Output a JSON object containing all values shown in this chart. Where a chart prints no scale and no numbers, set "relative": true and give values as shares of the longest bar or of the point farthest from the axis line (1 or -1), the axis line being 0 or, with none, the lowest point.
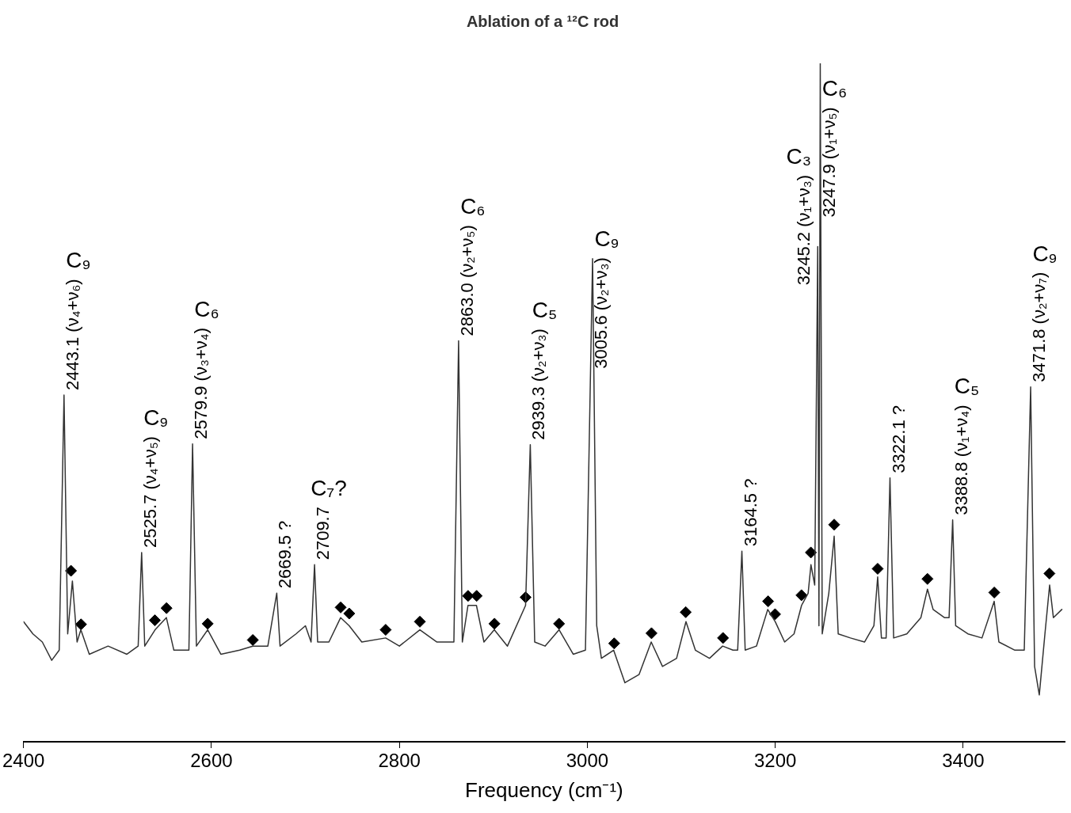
{
  "chart_data": {
    "type": "line",
    "relative": true,
    "title": "Ablation of a ¹²C rod",
    "xlabel": "Frequency (cm⁻¹)",
    "xlim": [
      2400,
      3508
    ],
    "xticks": [
      2400,
      2600,
      2800,
      3000,
      3200,
      3400
    ],
    "series": [
      {
        "type": "line",
        "color": "#333333",
        "x": [
          2400,
          2410,
          2420,
          2430,
          2438,
          2443.1,
          2447,
          2452,
          2457,
          2461,
          2470,
          2490,
          2510,
          2522,
          2525.7,
          2529,
          2540,
          2552,
          2560,
          2576,
          2579.9,
          2584,
          2596,
          2610,
          2630,
          2644,
          2660,
          2669.5,
          2673,
          2690,
          2700,
          2706,
          2709.7,
          2713,
          2725,
          2737.5,
          2746.6,
          2760,
          2785.4,
          2800,
          2821.8,
          2840,
          2858,
          2863,
          2867,
          2873,
          2882,
          2890,
          2901,
          2915,
          2934.3,
          2939.3,
          2944,
          2955,
          2970,
          2985,
          2998,
          3005.6,
          3010,
          3015,
          3028,
          3040,
          3055,
          3068,
          3080,
          3095,
          3105,
          3115,
          3130,
          3144,
          3155,
          3160,
          3164.5,
          3168,
          3180,
          3192,
          3200,
          3210,
          3220,
          3228,
          3235,
          3238,
          3242,
          3245.2,
          3246.5,
          3247.9,
          3250,
          3257,
          3262.7,
          3267,
          3280,
          3295,
          3305,
          3309,
          3313,
          3318,
          3322.1,
          3326,
          3340,
          3355,
          3362,
          3368,
          3380,
          3385,
          3388.8,
          3392,
          3405,
          3420,
          3433,
          3438,
          3455,
          3465,
          3471.8,
          3476,
          3481,
          3487,
          3492,
          3496,
          3505
        ],
        "values": [
          0.177,
          0.159,
          0.147,
          0.12,
          0.135,
          0.511,
          0.159,
          0.237,
          0.147,
          0.165,
          0.129,
          0.141,
          0.129,
          0.141,
          0.279,
          0.141,
          0.165,
          0.183,
          0.135,
          0.135,
          0.439,
          0.141,
          0.165,
          0.129,
          0.135,
          0.141,
          0.141,
          0.219,
          0.141,
          0.159,
          0.171,
          0.147,
          0.261,
          0.147,
          0.147,
          0.183,
          0.171,
          0.147,
          0.153,
          0.141,
          0.165,
          0.147,
          0.147,
          0.591,
          0.147,
          0.201,
          0.201,
          0.147,
          0.165,
          0.141,
          0.201,
          0.438,
          0.147,
          0.141,
          0.165,
          0.129,
          0.135,
          0.712,
          0.171,
          0.123,
          0.135,
          0.087,
          0.099,
          0.147,
          0.111,
          0.123,
          0.177,
          0.135,
          0.123,
          0.141,
          0.135,
          0.135,
          0.281,
          0.135,
          0.141,
          0.195,
          0.177,
          0.147,
          0.159,
          0.201,
          0.219,
          0.261,
          0.231,
          0.73,
          0.171,
          1,
          0.159,
          0.219,
          0.303,
          0.159,
          0.153,
          0.147,
          0.171,
          0.243,
          0.153,
          0.153,
          0.389,
          0.153,
          0.159,
          0.183,
          0.225,
          0.195,
          0.183,
          0.183,
          0.327,
          0.171,
          0.159,
          0.153,
          0.207,
          0.147,
          0.135,
          0.135,
          0.523,
          0.111,
          0.069,
          0.159,
          0.231,
          0.183,
          0.195
        ]
      },
      {
        "type": "scatter",
        "marker": "diamond",
        "color": "#000000",
        "x": [
          2450.5,
          2461.2,
          2539.8,
          2552.2,
          2596,
          2644,
          2737.5,
          2746.6,
          2785.4,
          2821.8,
          2873.1,
          2882.2,
          2901.2,
          2934.3,
          2969.9,
          3028.6,
          3068.3,
          3104.7,
          3144.4,
          3192.4,
          3199.8,
          3227.9,
          3237.9,
          3262.7,
          3309,
          3362,
          3433.1,
          3491.8
        ],
        "values": [
          0.252,
          0.173,
          0.179,
          0.197,
          0.174,
          0.15,
          0.198,
          0.189,
          0.165,
          0.177,
          0.215,
          0.215,
          0.174,
          0.213,
          0.174,
          0.145,
          0.16,
          0.191,
          0.153,
          0.207,
          0.188,
          0.216,
          0.279,
          0.32,
          0.255,
          0.24,
          0.22,
          0.248
        ]
      }
    ],
    "annotations": [
      {
        "text": "2443.1 (ν₄+ν₆)",
        "x": 2443.1,
        "y": 0.511
      },
      "C₉",
      {
        "text": "2525.7 (ν₄+ν₅)",
        "x": 2525.7,
        "y": 0.279
      },
      "C₉",
      {
        "text": "2579.9 (ν₃+ν₄)",
        "x": 2579.9,
        "y": 0.439
      },
      "C₆",
      {
        "text": "2669.5 ?",
        "x": 2669.5,
        "y": 0.219
      },
      {
        "text": "2709.7",
        "x": 2709.7,
        "y": 0.261
      },
      "C₇?",
      {
        "text": "2863.0 (ν₂+ν₅)",
        "x": 2863,
        "y": 0.591
      },
      "C₆",
      {
        "text": "2939.3 (ν₂+ν₃)",
        "x": 2939.3,
        "y": 0.438
      },
      "C₅",
      {
        "text": "3005.6 (ν₂+ν₃)",
        "x": 3005.6,
        "y": 0.543
      },
      "C₉",
      {
        "text": "3164.5 ?",
        "x": 3164.5,
        "y": 0.281
      },
      {
        "text": "3245.2 (ν₁+ν₃)",
        "x": 3245.2,
        "y": 0.666
      },
      "C₃",
      {
        "text": "3247.9 (ν₁+ν₅)",
        "x": 3247.9,
        "y": 0.766
      },
      "C₆",
      {
        "text": "3322.1 ?",
        "x": 3322.1,
        "y": 0.389
      },
      {
        "text": "3388.8 (ν₁+ν₄)",
        "x": 3388.8,
        "y": 0.327
      },
      "C₅",
      {
        "text": "3471.8 (ν₂+ν₇)",
        "x": 3471.8,
        "y": 0.523
      },
      "C₉"
    ]
  }
}
